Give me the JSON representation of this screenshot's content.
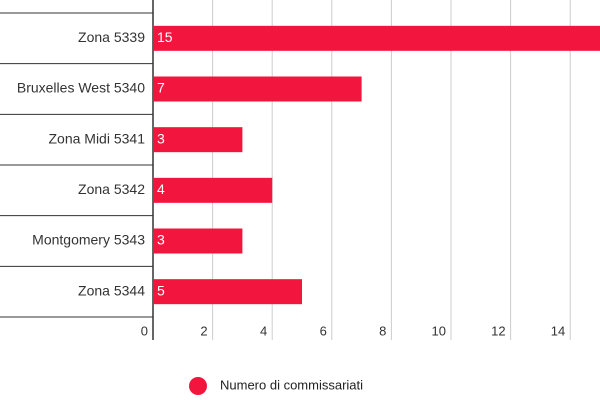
{
  "chart_data": {
    "type": "hbar",
    "categories": [
      "Zona 5339",
      "Bruxelles West 5340",
      "Zona Midi 5341",
      "Zona 5342",
      "Montgomery 5343",
      "Zona 5344"
    ],
    "series": [
      {
        "name": "Numero di commissariati",
        "color": "#f2163e",
        "values": [
          15,
          7,
          3,
          4,
          3,
          5
        ]
      }
    ],
    "xlim": [
      0,
      15
    ],
    "xticks": [
      0,
      2,
      4,
      6,
      8,
      10,
      12,
      14
    ],
    "grid": true,
    "legend": "bottom"
  }
}
